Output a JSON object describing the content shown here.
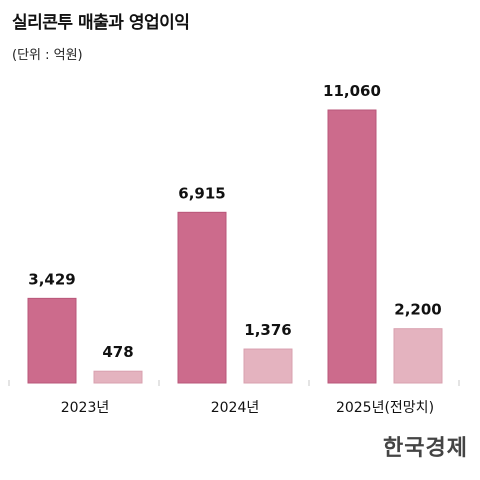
{
  "header": {
    "title": "실리콘투 매출과 영업이익",
    "unit": "(단위 : 억원)"
  },
  "brand": {
    "logo_text": "한국경제"
  },
  "colors": {
    "revenue": "#cc6b8c",
    "revenue_edge": "#b9577a",
    "profit": "#e4b3bf",
    "profit_edge": "#d9a0af",
    "axis": "#c8c8c8"
  },
  "chart_data": {
    "type": "bar",
    "categories": [
      "2023년",
      "2024년",
      "2025년(전망치)"
    ],
    "series": [
      {
        "values": [
          3429,
          6915,
          11060
        ],
        "labels": [
          "3,429",
          "6,915",
          "11,060"
        ]
      },
      {
        "values": [
          478,
          1376,
          2200
        ],
        "labels": [
          "478",
          "1,376",
          "2,200"
        ]
      }
    ],
    "title": "",
    "xlabel": "",
    "ylabel": "",
    "ylim": [
      0,
      11060
    ],
    "grid": false,
    "legend": "none"
  }
}
